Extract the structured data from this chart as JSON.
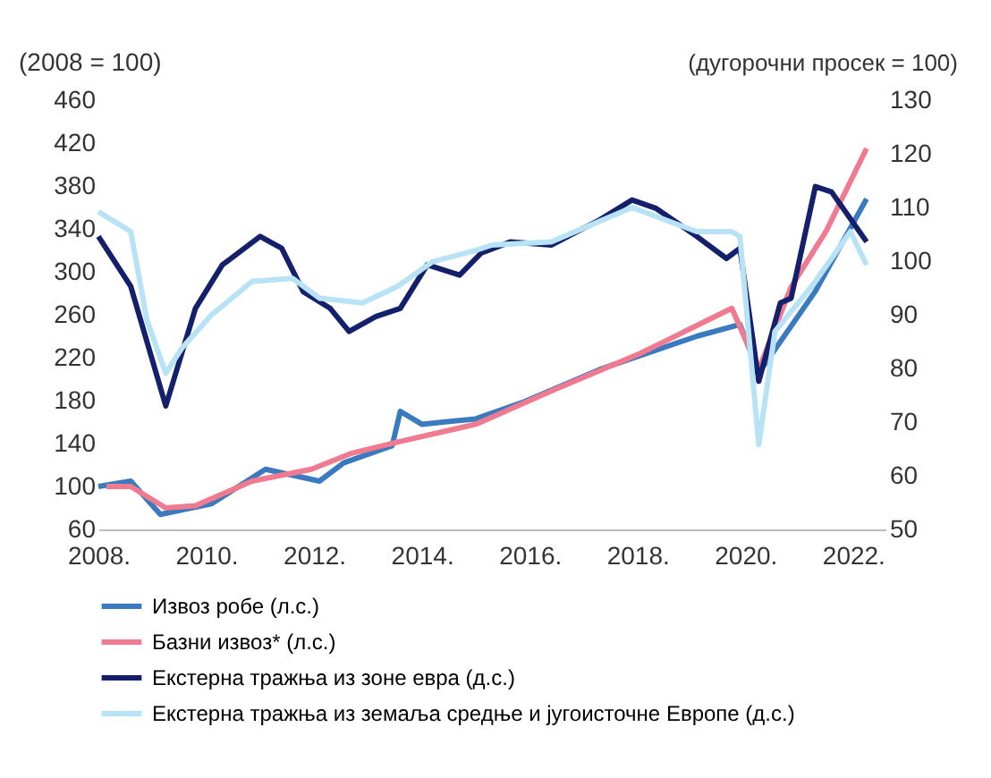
{
  "chart_data": {
    "type": "line",
    "ylabel": "(2008 = 100)",
    "y2label": "(дугорочни просек = 100)",
    "xlim": [
      2008,
      2022.6
    ],
    "xticks": [
      {
        "value": 2008,
        "label": "2008."
      },
      {
        "value": 2010,
        "label": "2010."
      },
      {
        "value": 2012,
        "label": "2012."
      },
      {
        "value": 2014,
        "label": "2014."
      },
      {
        "value": 2016,
        "label": "2016."
      },
      {
        "value": 2018,
        "label": "2018."
      },
      {
        "value": 2020,
        "label": "2020."
      },
      {
        "value": 2022,
        "label": "2022."
      }
    ],
    "ylim": [
      60,
      460
    ],
    "yticks": [
      60,
      100,
      140,
      180,
      220,
      260,
      300,
      340,
      380,
      420,
      460
    ],
    "y2lim": [
      50,
      130
    ],
    "y2ticks": [
      50,
      60,
      70,
      80,
      90,
      100,
      110,
      120,
      130
    ],
    "grid": false,
    "legend": "bottom",
    "line_style": "solid",
    "marker": "none",
    "series": [
      {
        "name": "Извоз робе (л.с.)",
        "color": "#3a7bbf",
        "axis": "y",
        "x": [
          2008,
          2008.6,
          2009.15,
          2010.1,
          2011.1,
          2012.1,
          2012.55,
          2013.45,
          2013.6,
          2014.0,
          2015.0,
          2015.85,
          2017.3,
          2019.1,
          2019.9,
          2020.25,
          2021.3,
          2022.25
        ],
        "values": [
          100,
          105,
          74,
          84,
          116,
          105,
          122,
          138,
          170,
          158,
          163,
          178,
          209,
          240,
          251,
          206,
          282,
          368
        ]
      },
      {
        "name": "Базни извоз* (л.с.)",
        "color": "#f07a8f",
        "axis": "y",
        "x": [
          2008.15,
          2008.6,
          2009.25,
          2009.8,
          2010.85,
          2011.95,
          2012.7,
          2013.6,
          2015.0,
          2016.4,
          2018.05,
          2019.75,
          2020.25,
          2020.85,
          2021.5,
          2022.25
        ],
        "values": [
          100,
          100,
          80,
          82,
          105,
          116,
          131,
          142,
          158,
          189,
          224,
          266,
          209,
          286,
          338,
          415
        ]
      },
      {
        "name": "Екстерна тражња из зоне евра (д.с.)",
        "color": "#14206b",
        "axis": "y2",
        "x": [
          2008,
          2008.6,
          2009.25,
          2009.8,
          2010.3,
          2011.0,
          2011.4,
          2011.8,
          2012.3,
          2012.65,
          2013.15,
          2013.6,
          2014.1,
          2014.7,
          2015.1,
          2015.65,
          2016.4,
          2017.3,
          2017.9,
          2018.35,
          2019.1,
          2019.65,
          2019.9,
          2020.25,
          2020.65,
          2020.85,
          2021.3,
          2021.6,
          2022.25
        ],
        "values": [
          104.6,
          95.3,
          73,
          91.2,
          99.3,
          104.6,
          102.4,
          94.3,
          91.2,
          86.9,
          89.7,
          91.2,
          99.3,
          97.4,
          101.5,
          103.6,
          103,
          107.7,
          111.4,
          109.8,
          104.6,
          100.5,
          102.4,
          77.6,
          92.2,
          93.1,
          113.9,
          112.9,
          103.6
        ]
      },
      {
        "name": "Екстерна тражња из земаља средње и југоисточне Европе (д.с.)",
        "color": "#b8e2f5",
        "axis": "y2",
        "x": [
          2008,
          2008.6,
          2008.9,
          2009.25,
          2009.55,
          2010.1,
          2010.85,
          2011.6,
          2012.1,
          2012.9,
          2013.55,
          2014.2,
          2015.0,
          2015.3,
          2016.4,
          2017.9,
          2019.1,
          2019.75,
          2019.9,
          2020.25,
          2020.55,
          2021.3,
          2021.95,
          2022.25
        ],
        "values": [
          109.2,
          105.5,
          89,
          79.1,
          83.8,
          90,
          96.2,
          96.8,
          93.1,
          92.2,
          95.3,
          99.9,
          102,
          103,
          103.6,
          110,
          105.5,
          105.5,
          104.6,
          65.8,
          86.9,
          96.2,
          105.5,
          99.3
        ]
      }
    ]
  }
}
